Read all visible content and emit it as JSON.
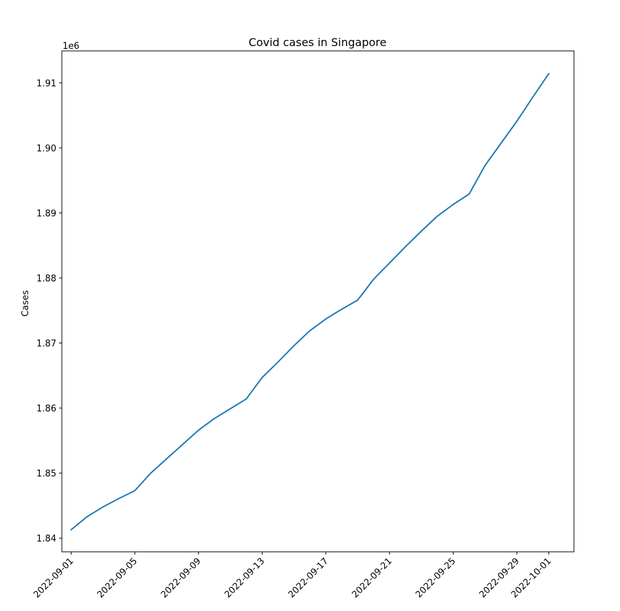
{
  "chart_data": {
    "type": "line",
    "title": "Covid cases in Singapore",
    "xlabel": "",
    "ylabel": "Cases",
    "y_offset_label": "1e6",
    "y_scale_factor": 1000000,
    "grid": false,
    "legend": "none",
    "colors": {
      "line": "#1f77b4",
      "axis": "#000000",
      "background": "#ffffff"
    },
    "xlim": [
      "2022-08-31T10:00",
      "2022-10-02T14:00"
    ],
    "ylim": [
      1.8379,
      1.9149
    ],
    "x_ticks": [
      "2022-09-01",
      "2022-09-05",
      "2022-09-09",
      "2022-09-13",
      "2022-09-17",
      "2022-09-21",
      "2022-09-25",
      "2022-09-29",
      "2022-10-01"
    ],
    "y_ticks": [
      "1.84",
      "1.85",
      "1.86",
      "1.87",
      "1.88",
      "1.89",
      "1.90",
      "1.91"
    ],
    "series": [
      {
        "x": [
          "2022-09-01",
          "2022-09-02",
          "2022-09-03",
          "2022-09-04",
          "2022-09-05",
          "2022-09-06",
          "2022-09-07",
          "2022-09-08",
          "2022-09-09",
          "2022-09-10",
          "2022-09-11",
          "2022-09-12",
          "2022-09-13",
          "2022-09-14",
          "2022-09-15",
          "2022-09-16",
          "2022-09-17",
          "2022-09-18",
          "2022-09-19",
          "2022-09-20",
          "2022-09-21",
          "2022-09-22",
          "2022-09-23",
          "2022-09-24",
          "2022-09-25",
          "2022-09-26",
          "2022-09-27",
          "2022-09-28",
          "2022-09-29",
          "2022-09-30",
          "2022-10-01"
        ],
        "values": [
          1.8413,
          1.8433,
          1.8448,
          1.8461,
          1.8473,
          1.85,
          1.8522,
          1.8544,
          1.8566,
          1.8584,
          1.8599,
          1.8614,
          1.8647,
          1.8671,
          1.8696,
          1.8719,
          1.8737,
          1.8752,
          1.8766,
          1.8798,
          1.8823,
          1.8848,
          1.8872,
          1.8895,
          1.8913,
          1.8929,
          1.8973,
          1.9007,
          1.9041,
          1.9078,
          1.9114
        ]
      }
    ]
  }
}
